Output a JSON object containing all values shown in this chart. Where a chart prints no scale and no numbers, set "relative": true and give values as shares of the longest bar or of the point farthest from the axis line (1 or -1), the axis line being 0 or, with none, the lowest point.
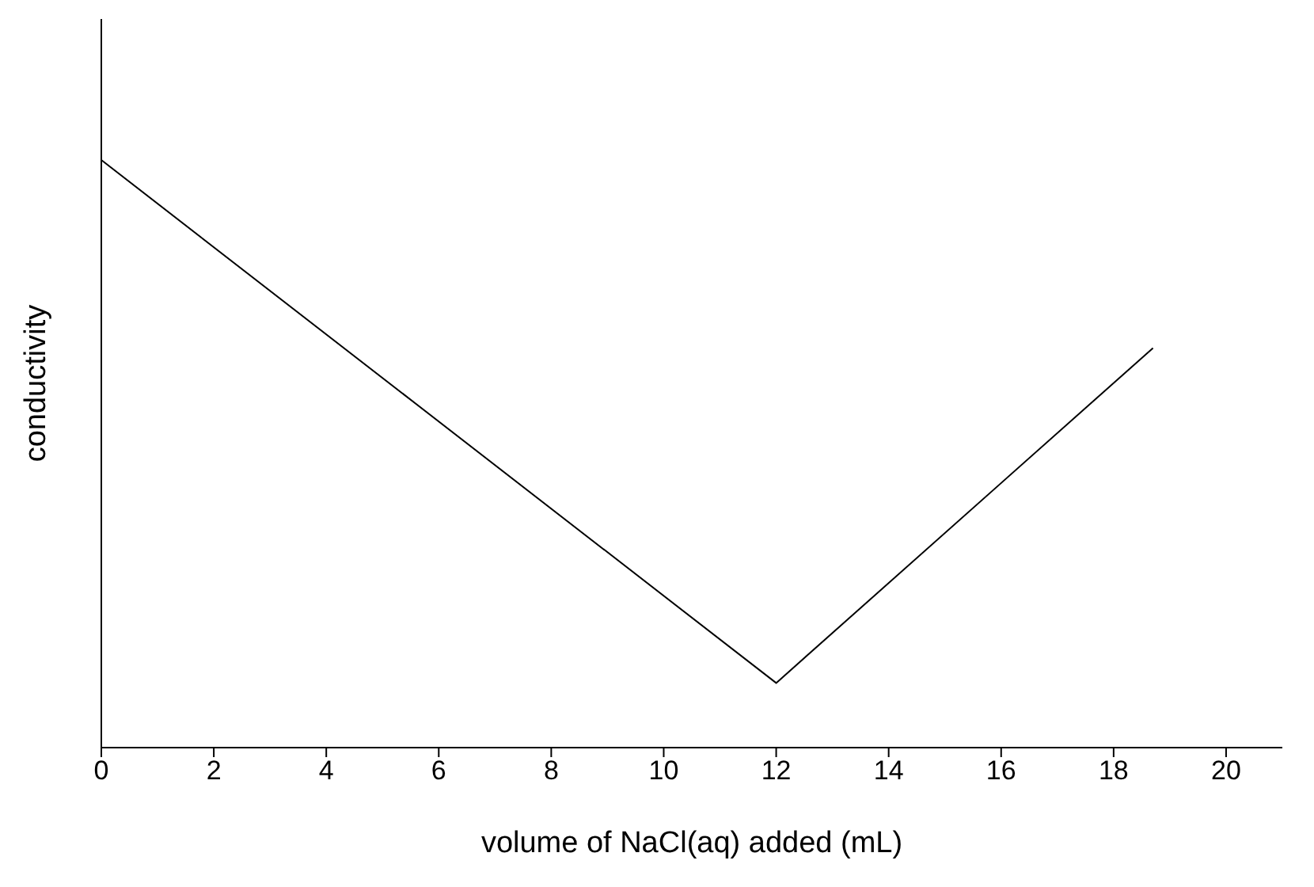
{
  "chart_data": {
    "type": "line",
    "relative": true,
    "xlabel": "volume of NaCl(aq) added (mL)",
    "ylabel": "conductivity",
    "x": [
      0,
      12,
      18.7
    ],
    "series": [
      {
        "color": "#000000",
        "values": [
          1,
          0.11,
          0.68
        ]
      }
    ],
    "xlim": [
      0,
      21
    ],
    "xticks": [
      0,
      2,
      4,
      6,
      8,
      10,
      12,
      14,
      16,
      18,
      20
    ],
    "marker": "none",
    "line_style": "solid"
  }
}
